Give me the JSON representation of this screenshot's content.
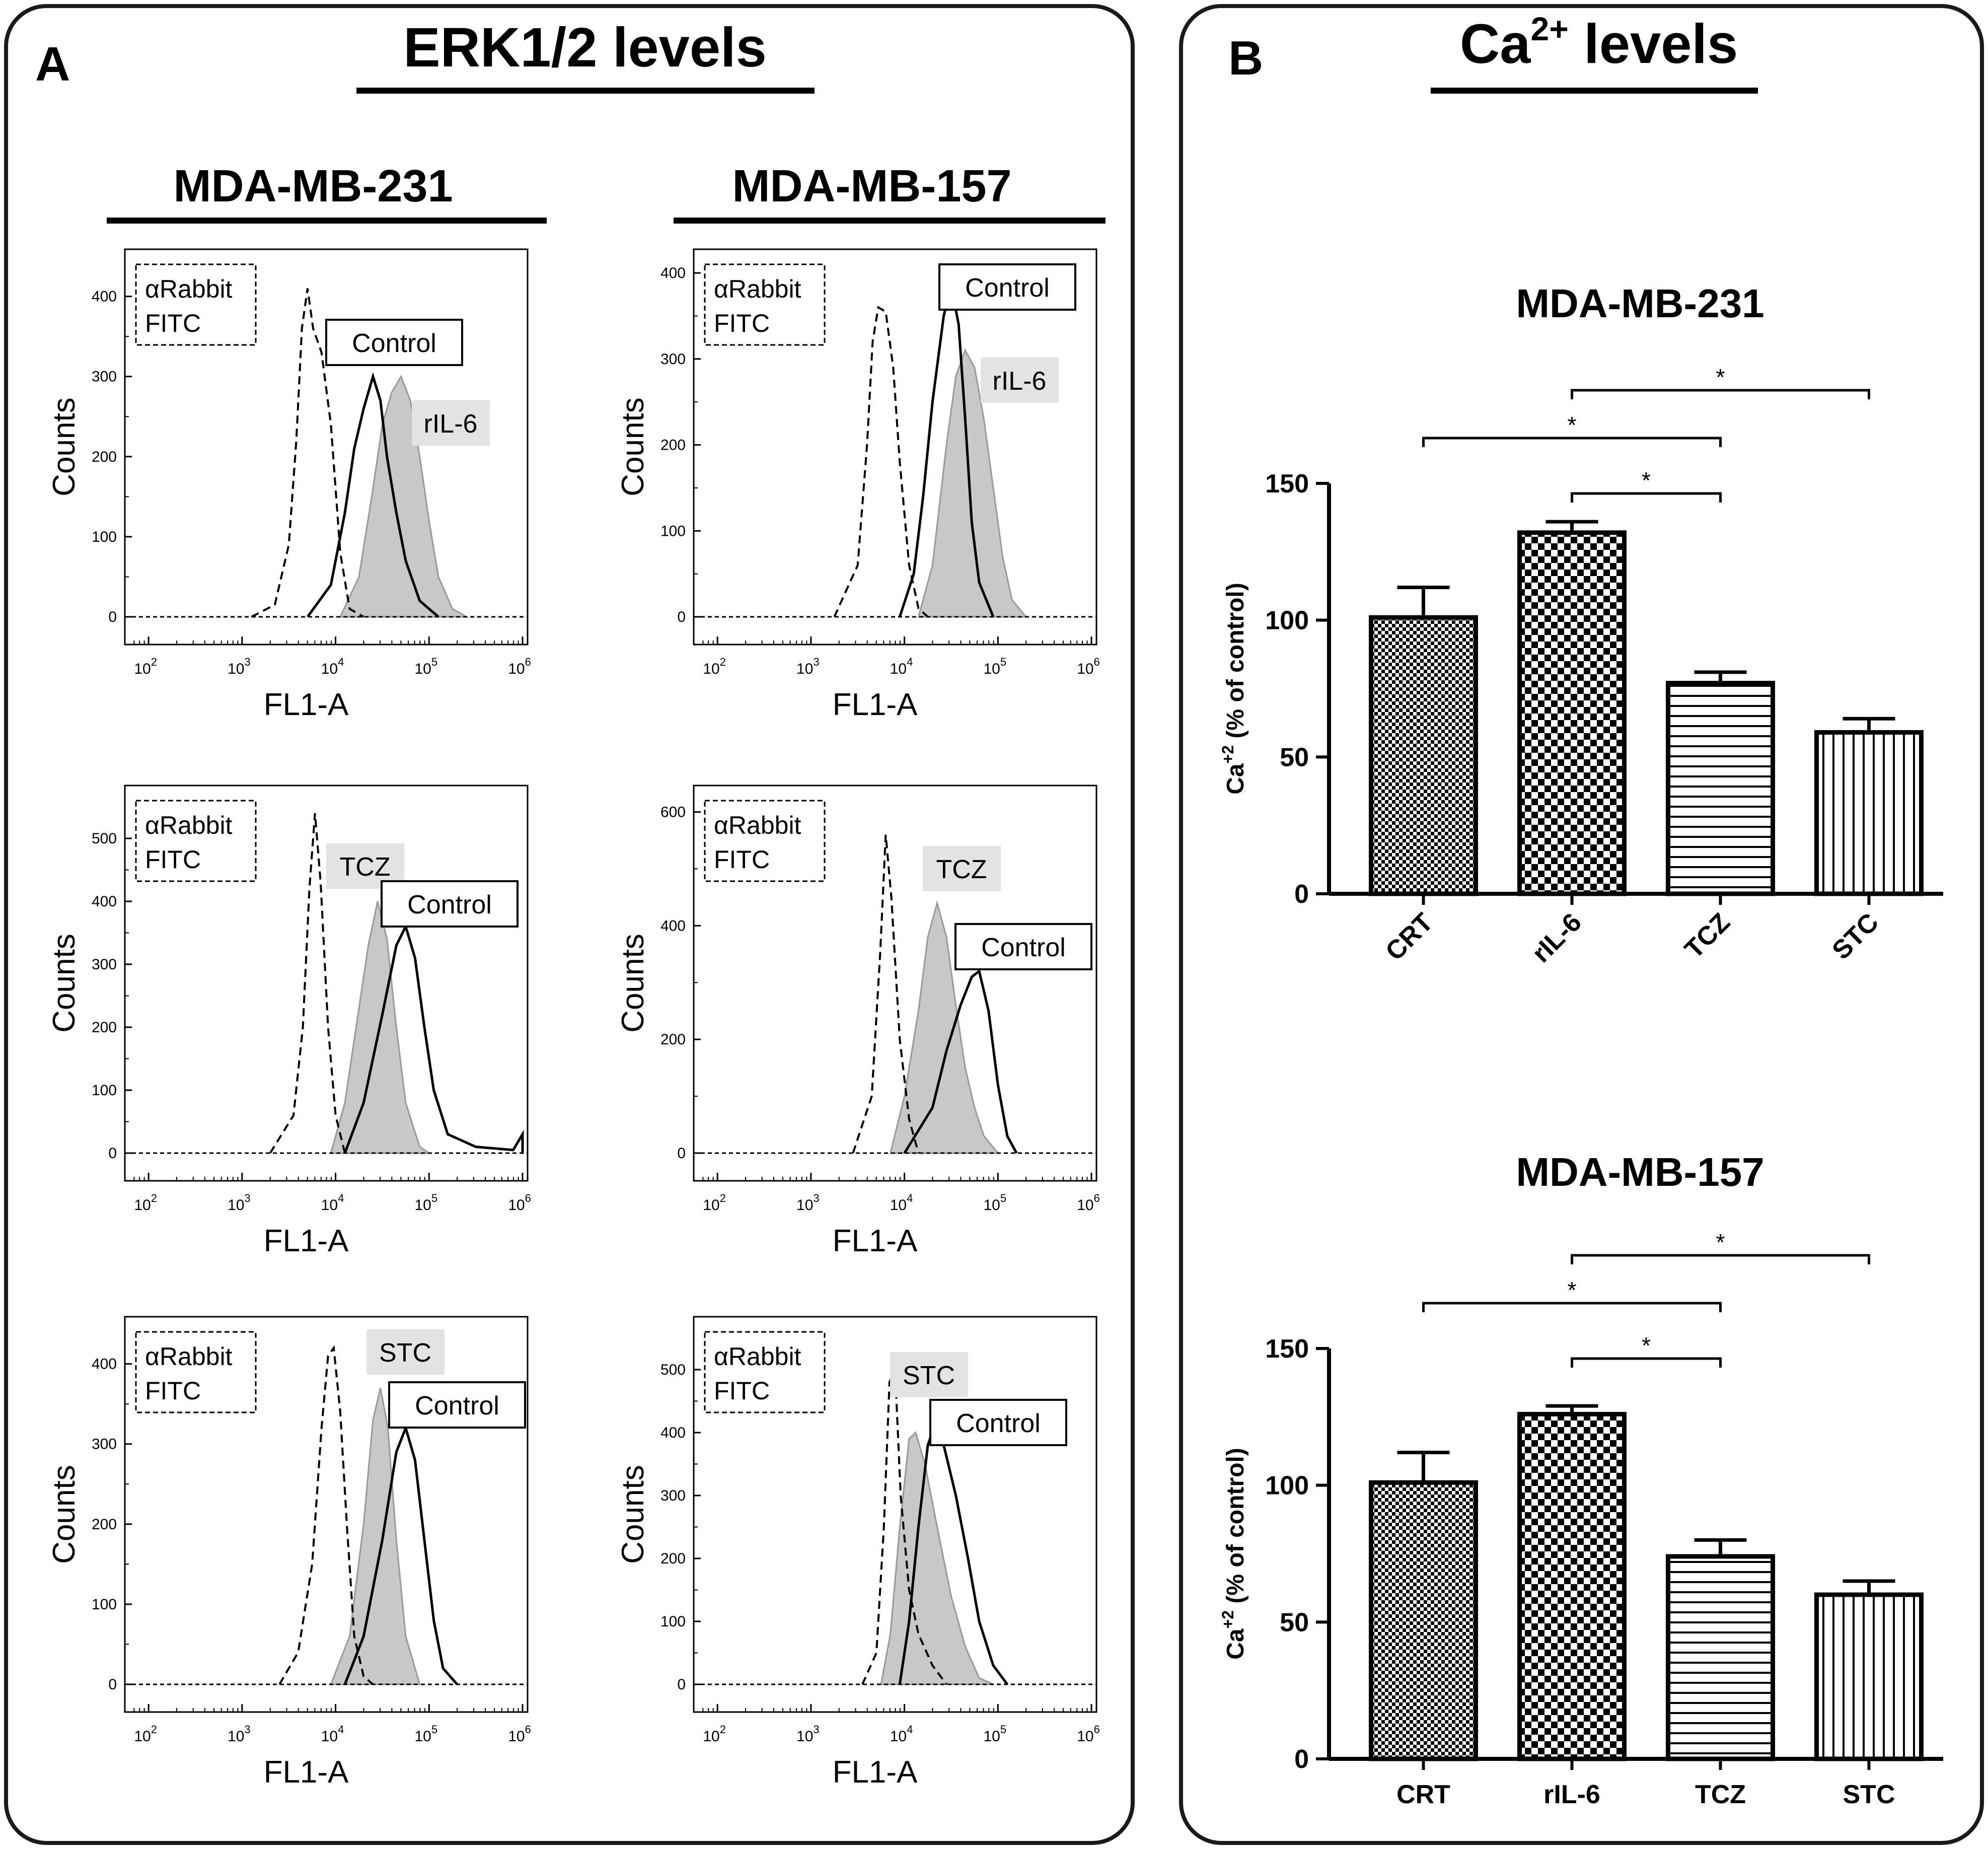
{
  "panels": [
    {
      "letter": "A",
      "title": "ERK1/2 levels"
    },
    {
      "letter": "B",
      "title_main": "Ca",
      "title_sup": "2+",
      "title_rest": " levels"
    }
  ],
  "flow": {
    "column_titles": [
      "MDA-MB-231",
      "MDA-MB-157"
    ],
    "xlabel": "FL1-A",
    "ylabel": "Counts",
    "x_tick_base": "10",
    "x_tick_exponents": [
      "2",
      "3",
      "4",
      "5",
      "6"
    ],
    "x_log_range": [
      1.8,
      6.0
    ],
    "plots": [
      {
        "col": 0,
        "row": 0,
        "ymax": 440,
        "yticks": [
          "0",
          "100",
          "200",
          "300",
          "400"
        ],
        "iso_label": [
          "αRabbit",
          "FITC"
        ],
        "treat_label": "rIL-6",
        "control_label": "Control",
        "iso": [
          [
            3.1,
            0
          ],
          [
            3.35,
            15
          ],
          [
            3.5,
            90
          ],
          [
            3.58,
            220
          ],
          [
            3.64,
            360
          ],
          [
            3.7,
            410
          ],
          [
            3.76,
            360
          ],
          [
            3.85,
            330
          ],
          [
            3.95,
            240
          ],
          [
            4.05,
            80
          ],
          [
            4.15,
            10
          ],
          [
            4.3,
            0
          ]
        ],
        "ctrl": [
          [
            3.7,
            0
          ],
          [
            3.95,
            40
          ],
          [
            4.1,
            130
          ],
          [
            4.2,
            210
          ],
          [
            4.3,
            260
          ],
          [
            4.4,
            300
          ],
          [
            4.48,
            270
          ],
          [
            4.55,
            200
          ],
          [
            4.65,
            130
          ],
          [
            4.75,
            70
          ],
          [
            4.9,
            20
          ],
          [
            5.1,
            0
          ]
        ],
        "treat": [
          [
            4.05,
            0
          ],
          [
            4.25,
            50
          ],
          [
            4.4,
            160
          ],
          [
            4.5,
            240
          ],
          [
            4.6,
            280
          ],
          [
            4.7,
            300
          ],
          [
            4.8,
            270
          ],
          [
            4.9,
            200
          ],
          [
            5.0,
            120
          ],
          [
            5.1,
            50
          ],
          [
            5.25,
            10
          ],
          [
            5.4,
            0
          ]
        ]
      },
      {
        "col": 1,
        "row": 0,
        "ymax": 410,
        "yticks": [
          "0",
          "100",
          "200",
          "300",
          "400"
        ],
        "iso_label": [
          "αRabbit",
          "FITC"
        ],
        "treat_label": "rIL-6",
        "control_label": "Control",
        "iso": [
          [
            3.25,
            0
          ],
          [
            3.5,
            60
          ],
          [
            3.6,
            200
          ],
          [
            3.66,
            320
          ],
          [
            3.72,
            360
          ],
          [
            3.8,
            355
          ],
          [
            3.88,
            290
          ],
          [
            3.95,
            180
          ],
          [
            4.05,
            60
          ],
          [
            4.15,
            10
          ],
          [
            4.25,
            0
          ]
        ],
        "ctrl": [
          [
            3.95,
            0
          ],
          [
            4.1,
            50
          ],
          [
            4.2,
            140
          ],
          [
            4.3,
            250
          ],
          [
            4.42,
            350
          ],
          [
            4.5,
            385
          ],
          [
            4.58,
            340
          ],
          [
            4.65,
            230
          ],
          [
            4.72,
            110
          ],
          [
            4.8,
            40
          ],
          [
            4.95,
            0
          ]
        ],
        "treat": [
          [
            4.15,
            0
          ],
          [
            4.3,
            60
          ],
          [
            4.45,
            200
          ],
          [
            4.55,
            280
          ],
          [
            4.65,
            310
          ],
          [
            4.75,
            290
          ],
          [
            4.85,
            230
          ],
          [
            4.95,
            150
          ],
          [
            5.05,
            70
          ],
          [
            5.15,
            20
          ],
          [
            5.3,
            0
          ]
        ]
      },
      {
        "col": 0,
        "row": 1,
        "ymax": 560,
        "yticks": [
          "0",
          "100",
          "200",
          "300",
          "400",
          "500"
        ],
        "iso_label": [
          "αRabbit",
          "FITC"
        ],
        "treat_label": "TCZ",
        "control_label": "Control",
        "iso": [
          [
            3.3,
            0
          ],
          [
            3.55,
            60
          ],
          [
            3.65,
            200
          ],
          [
            3.72,
            420
          ],
          [
            3.78,
            540
          ],
          [
            3.84,
            430
          ],
          [
            3.92,
            200
          ],
          [
            4.0,
            60
          ],
          [
            4.1,
            0
          ]
        ],
        "ctrl": [
          [
            4.1,
            0
          ],
          [
            4.3,
            80
          ],
          [
            4.5,
            220
          ],
          [
            4.65,
            330
          ],
          [
            4.75,
            360
          ],
          [
            4.85,
            310
          ],
          [
            4.95,
            200
          ],
          [
            5.05,
            100
          ],
          [
            5.2,
            30
          ],
          [
            5.5,
            10
          ],
          [
            5.9,
            5
          ],
          [
            6.0,
            30
          ]
        ],
        "treat": [
          [
            3.95,
            0
          ],
          [
            4.1,
            80
          ],
          [
            4.2,
            180
          ],
          [
            4.35,
            330
          ],
          [
            4.45,
            400
          ],
          [
            4.55,
            340
          ],
          [
            4.65,
            200
          ],
          [
            4.75,
            80
          ],
          [
            4.9,
            10
          ],
          [
            5.0,
            0
          ]
        ]
      },
      {
        "col": 1,
        "row": 1,
        "ymax": 620,
        "yticks": [
          "0",
          "200",
          "400",
          "600"
        ],
        "iso_label": [
          "αRabbit",
          "FITC"
        ],
        "treat_label": "TCZ",
        "control_label": "Control",
        "iso": [
          [
            3.45,
            0
          ],
          [
            3.65,
            100
          ],
          [
            3.74,
            350
          ],
          [
            3.8,
            560
          ],
          [
            3.86,
            450
          ],
          [
            3.95,
            200
          ],
          [
            4.05,
            60
          ],
          [
            4.15,
            0
          ]
        ],
        "ctrl": [
          [
            4.0,
            0
          ],
          [
            4.3,
            80
          ],
          [
            4.45,
            180
          ],
          [
            4.6,
            260
          ],
          [
            4.72,
            310
          ],
          [
            4.8,
            320
          ],
          [
            4.9,
            250
          ],
          [
            5.0,
            120
          ],
          [
            5.1,
            30
          ],
          [
            5.2,
            0
          ]
        ],
        "treat": [
          [
            3.85,
            0
          ],
          [
            4.0,
            100
          ],
          [
            4.15,
            250
          ],
          [
            4.25,
            380
          ],
          [
            4.35,
            440
          ],
          [
            4.45,
            380
          ],
          [
            4.55,
            260
          ],
          [
            4.65,
            150
          ],
          [
            4.75,
            80
          ],
          [
            4.85,
            30
          ],
          [
            5.0,
            0
          ]
        ]
      },
      {
        "col": 0,
        "row": 2,
        "ymax": 440,
        "yticks": [
          "0",
          "100",
          "200",
          "300",
          "400"
        ],
        "iso_label": [
          "αRabbit",
          "FITC"
        ],
        "treat_label": "STC",
        "control_label": "Control",
        "iso": [
          [
            3.4,
            0
          ],
          [
            3.6,
            40
          ],
          [
            3.75,
            150
          ],
          [
            3.85,
            320
          ],
          [
            3.92,
            410
          ],
          [
            3.98,
            420
          ],
          [
            4.05,
            340
          ],
          [
            4.12,
            200
          ],
          [
            4.2,
            60
          ],
          [
            4.3,
            10
          ],
          [
            4.4,
            0
          ]
        ],
        "ctrl": [
          [
            4.1,
            0
          ],
          [
            4.3,
            60
          ],
          [
            4.5,
            180
          ],
          [
            4.65,
            290
          ],
          [
            4.75,
            320
          ],
          [
            4.85,
            280
          ],
          [
            4.95,
            180
          ],
          [
            5.05,
            80
          ],
          [
            5.15,
            20
          ],
          [
            5.3,
            0
          ]
        ],
        "treat": [
          [
            3.95,
            0
          ],
          [
            4.15,
            60
          ],
          [
            4.3,
            200
          ],
          [
            4.4,
            330
          ],
          [
            4.48,
            370
          ],
          [
            4.56,
            320
          ],
          [
            4.65,
            180
          ],
          [
            4.75,
            60
          ],
          [
            4.9,
            0
          ]
        ]
      },
      {
        "col": 1,
        "row": 2,
        "ymax": 560,
        "yticks": [
          "0",
          "100",
          "200",
          "300",
          "400",
          "500"
        ],
        "iso_label": [
          "αRabbit",
          "FITC"
        ],
        "treat_label": "STC",
        "control_label": "Control",
        "iso": [
          [
            3.55,
            0
          ],
          [
            3.7,
            50
          ],
          [
            3.78,
            250
          ],
          [
            3.84,
            480
          ],
          [
            3.9,
            500
          ],
          [
            3.96,
            300
          ],
          [
            4.05,
            150
          ],
          [
            4.15,
            80
          ],
          [
            4.3,
            30
          ],
          [
            4.45,
            0
          ]
        ],
        "ctrl": [
          [
            3.95,
            0
          ],
          [
            4.05,
            100
          ],
          [
            4.15,
            250
          ],
          [
            4.25,
            380
          ],
          [
            4.32,
            410
          ],
          [
            4.42,
            380
          ],
          [
            4.55,
            300
          ],
          [
            4.68,
            200
          ],
          [
            4.8,
            100
          ],
          [
            4.95,
            30
          ],
          [
            5.1,
            0
          ]
        ],
        "treat": [
          [
            3.75,
            0
          ],
          [
            3.85,
            80
          ],
          [
            3.95,
            250
          ],
          [
            4.05,
            390
          ],
          [
            4.12,
            400
          ],
          [
            4.22,
            350
          ],
          [
            4.35,
            250
          ],
          [
            4.5,
            140
          ],
          [
            4.65,
            60
          ],
          [
            4.8,
            10
          ],
          [
            4.95,
            0
          ]
        ]
      }
    ]
  },
  "chart_data": [
    {
      "type": "bar",
      "title": "MDA-MB-231",
      "categories": [
        "CRT",
        "rIL-6",
        "TCZ",
        "STC"
      ],
      "values": [
        101,
        132,
        77,
        59
      ],
      "errors": [
        11,
        4,
        4,
        5
      ],
      "ylabel_main": "Ca",
      "ylabel_sup": "+2",
      "ylabel_rest": " (% of control)",
      "ylim": [
        0,
        150
      ],
      "yticks": [
        "0",
        "50",
        "100",
        "150"
      ],
      "significance": [
        {
          "from": "rIL-6",
          "to": "STC",
          "label": "*"
        },
        {
          "from": "CRT",
          "to": "TCZ",
          "label": "*"
        },
        {
          "from": "rIL-6",
          "to": "TCZ",
          "label": "*"
        }
      ],
      "rotated_labels": true
    },
    {
      "type": "bar",
      "title": "MDA-MB-157",
      "categories": [
        "CRT",
        "rIL-6",
        "TCZ",
        "STC"
      ],
      "values": [
        101,
        126,
        74,
        60
      ],
      "errors": [
        11,
        3,
        6,
        5
      ],
      "ylabel_main": "Ca",
      "ylabel_sup": "+2",
      "ylabel_rest": " (% of control)",
      "ylim": [
        0,
        150
      ],
      "yticks": [
        "0",
        "50",
        "100",
        "150"
      ],
      "significance": [
        {
          "from": "rIL-6",
          "to": "STC",
          "label": "*"
        },
        {
          "from": "CRT",
          "to": "TCZ",
          "label": "*"
        },
        {
          "from": "rIL-6",
          "to": "TCZ",
          "label": "*"
        }
      ],
      "rotated_labels": false
    }
  ],
  "colors": {
    "line": "#000000",
    "fill": "#c8c8c8",
    "label_bg": "#e3e3e3",
    "panel_border": "#1a1a1a"
  }
}
